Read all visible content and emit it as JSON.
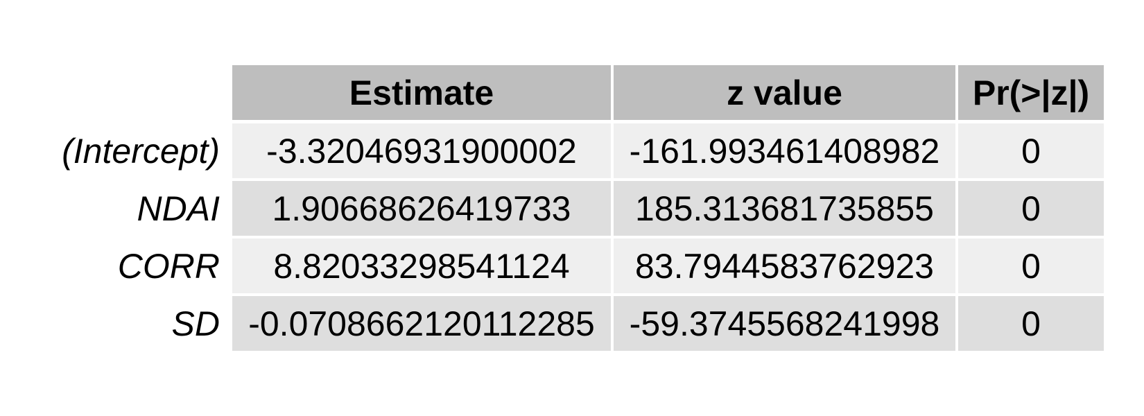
{
  "chart_data": {
    "type": "table",
    "columns": [
      "Estimate",
      "z value",
      "Pr(>|z|)"
    ],
    "rows": [
      {
        "label": "(Intercept)",
        "values": [
          "-3.32046931900002",
          "-161.993461408982",
          "0"
        ]
      },
      {
        "label": "NDAI",
        "values": [
          "1.90668626419733",
          "185.313681735855",
          "0"
        ]
      },
      {
        "label": "CORR",
        "values": [
          "8.82033298541124",
          "83.7944583762923",
          "0"
        ]
      },
      {
        "label": "SD",
        "values": [
          "-0.0708662120112285",
          "-59.3745568241998",
          "0"
        ]
      }
    ],
    "colors": {
      "header_fill": "#bebebe",
      "row_fill_odd": "#efefef",
      "row_fill_even": "#dedede",
      "text": "#000000"
    }
  }
}
